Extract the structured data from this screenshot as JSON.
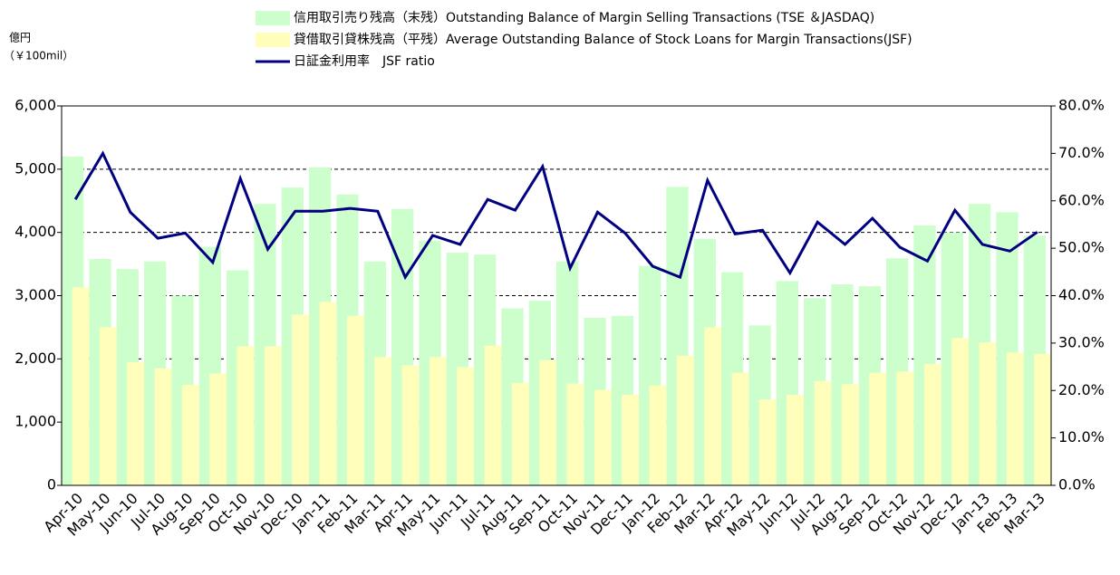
{
  "chart_data": {
    "type": "bar",
    "y_axis_label": "億円",
    "y_axis_sublabel": "（￥100mil）",
    "categories": [
      "Apr-10",
      "May-10",
      "Jun-10",
      "Jul-10",
      "Aug-10",
      "Sep-10",
      "Oct-10",
      "Nov-10",
      "Dec-10",
      "Jan-11",
      "Feb-11",
      "Mar-11",
      "Apr-11",
      "May-11",
      "Jun-11",
      "Jul-11",
      "Aug-11",
      "Sep-11",
      "Oct-11",
      "Nov-11",
      "Dec-11",
      "Jan-12",
      "Feb-12",
      "Mar-12",
      "Apr-12",
      "May-12",
      "Jun-12",
      "Jul-12",
      "Aug-12",
      "Sep-12",
      "Oct-12",
      "Nov-12",
      "Dec-12",
      "Jan-13",
      "Feb-13",
      "Mar-13"
    ],
    "series": [
      {
        "name": "信用取引売り残高（末残）Outstanding Balance of Margin Selling Transactions (TSE ＆JASDAQ)",
        "color": "#ccffcc",
        "type": "bar",
        "values": [
          5200,
          3580,
          3420,
          3540,
          3000,
          3770,
          3400,
          4450,
          4710,
          5030,
          4600,
          3540,
          4370,
          3870,
          3680,
          3650,
          2800,
          2920,
          3540,
          2650,
          2680,
          3470,
          4720,
          3900,
          3370,
          2530,
          3230,
          2960,
          3180,
          3150,
          3590,
          4110,
          4000,
          4450,
          4320,
          3950
        ]
      },
      {
        "name": "貸借取引貸株残高（平残）Average Outstanding Balance of Stock Loans for Margin Transactions(JSF)",
        "color": "#ffffbb",
        "type": "bar",
        "values": [
          3130,
          2500,
          1950,
          1850,
          1590,
          1770,
          2200,
          2200,
          2700,
          2900,
          2680,
          2030,
          1900,
          2030,
          1870,
          2210,
          1620,
          1980,
          1610,
          1510,
          1430,
          1580,
          2050,
          2500,
          1780,
          1360,
          1430,
          1650,
          1600,
          1780,
          1800,
          1920,
          2330,
          2260,
          2100,
          2080
        ]
      },
      {
        "name": "日証金利用率　JSF ratio",
        "color": "#000080",
        "type": "line",
        "axis": "y2",
        "values": [
          60.3,
          70,
          57.6,
          52.1,
          53.2,
          47,
          64.7,
          49.8,
          57.8,
          57.8,
          58.4,
          57.8,
          43.9,
          52.7,
          50.8,
          60.3,
          58,
          67.2,
          45.8,
          57.6,
          53.2,
          46.2,
          43.9,
          64.3,
          53,
          53.8,
          44.8,
          55.5,
          50.8,
          56.3,
          50.2,
          47.3,
          58,
          50.8,
          49.4,
          53.4
        ]
      }
    ],
    "ylim": [
      0,
      6000
    ],
    "yticks": [
      0,
      {
        "value": 1000,
        "label": "1,000"
      },
      {
        "value": 2000,
        "label": "2,000"
      },
      {
        "value": 3000,
        "label": "3,000"
      },
      {
        "value": 4000,
        "label": "4,000"
      },
      {
        "value": 5000,
        "label": "5,000"
      },
      {
        "value": 6000,
        "label": "6,000"
      }
    ],
    "y2lim": [
      0,
      80
    ],
    "y2ticks": [
      {
        "value": 0,
        "label": "0.0%"
      },
      {
        "value": 10,
        "label": "10.0%"
      },
      {
        "value": 20,
        "label": "20.0%"
      },
      {
        "value": 30,
        "label": "30.0%"
      },
      {
        "value": 40,
        "label": "40.0%"
      },
      {
        "value": 50,
        "label": "50.0%"
      },
      {
        "value": 60,
        "label": "60.0%"
      },
      {
        "value": 70,
        "label": "70.0%"
      },
      {
        "value": 80,
        "label": "80.0%"
      }
    ],
    "grid": true,
    "legend": "top"
  }
}
